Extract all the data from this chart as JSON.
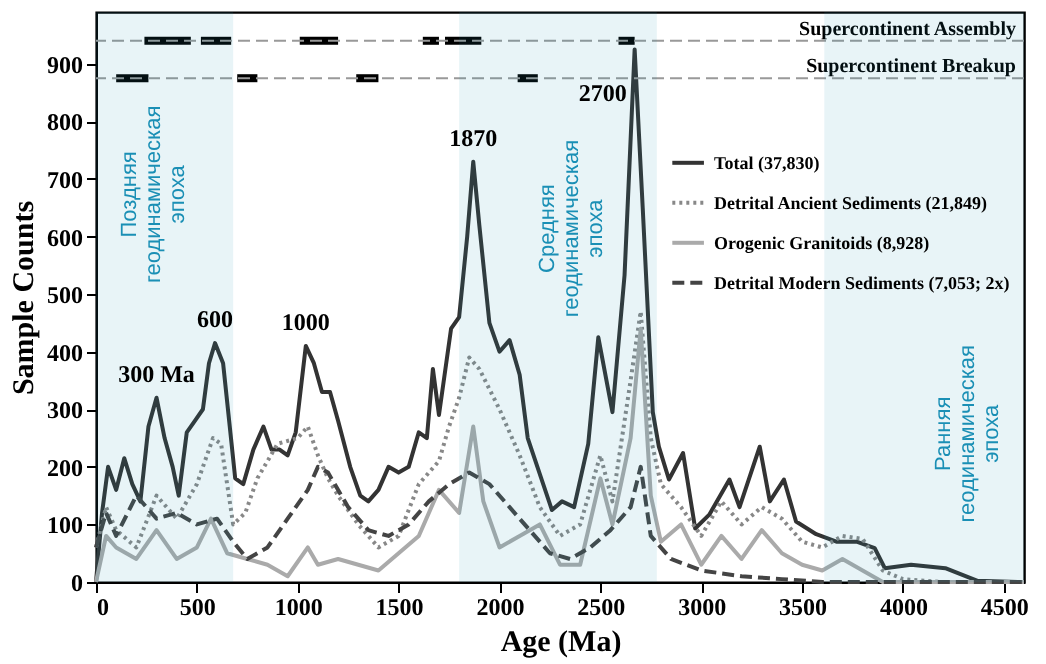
{
  "chart_data": {
    "type": "line",
    "xlabel": "Age (Ma)",
    "ylabel": "Sample Counts",
    "xlim": [
      0,
      4600
    ],
    "ylim": [
      0,
      990
    ],
    "xticks": [
      0,
      500,
      1000,
      1500,
      2000,
      2500,
      3000,
      3500,
      4000,
      4500
    ],
    "yticks": [
      0,
      100,
      200,
      300,
      400,
      500,
      600,
      700,
      800,
      900
    ],
    "grid": false,
    "legend": "right",
    "series": [
      {
        "name": "Total (37,830)",
        "color": "#333333",
        "line_style": "solid",
        "x": [
          0,
          30,
          60,
          100,
          140,
          180,
          220,
          260,
          300,
          340,
          380,
          410,
          450,
          490,
          530,
          560,
          590,
          630,
          660,
          690,
          730,
          780,
          830,
          870,
          910,
          950,
          990,
          1040,
          1080,
          1120,
          1160,
          1200,
          1260,
          1310,
          1350,
          1400,
          1450,
          1500,
          1550,
          1600,
          1640,
          1670,
          1700,
          1760,
          1800,
          1840,
          1870,
          1900,
          1950,
          2000,
          2050,
          2100,
          2140,
          2260,
          2310,
          2370,
          2440,
          2490,
          2560,
          2620,
          2670,
          2710,
          2760,
          2790,
          2840,
          2910,
          2970,
          3040,
          3140,
          3190,
          3290,
          3340,
          3410,
          3470,
          3570,
          3670,
          3770,
          3860,
          3910,
          4040,
          4210,
          4370,
          4570
        ],
        "values": [
          0,
          120,
          200,
          160,
          215,
          170,
          140,
          270,
          320,
          250,
          200,
          150,
          260,
          280,
          300,
          380,
          415,
          380,
          280,
          180,
          170,
          230,
          270,
          230,
          230,
          220,
          260,
          410,
          380,
          330,
          330,
          280,
          200,
          150,
          140,
          160,
          200,
          190,
          200,
          260,
          250,
          370,
          290,
          440,
          460,
          600,
          730,
          620,
          450,
          400,
          420,
          360,
          250,
          125,
          140,
          130,
          240,
          425,
          295,
          533,
          925,
          650,
          295,
          235,
          178,
          224,
          93,
          117,
          178,
          130,
          235,
          140,
          178,
          105,
          83,
          70,
          70,
          59,
          24,
          30,
          24,
          2,
          0
        ]
      },
      {
        "name": "Detrital Ancient Sediments (21,849)",
        "color": "#888888",
        "line_style": "dotted",
        "x": [
          0,
          50,
          100,
          200,
          300,
          400,
          500,
          580,
          620,
          680,
          740,
          800,
          900,
          1000,
          1050,
          1100,
          1150,
          1200,
          1300,
          1400,
          1500,
          1600,
          1700,
          1750,
          1800,
          1850,
          1900,
          2000,
          2100,
          2200,
          2300,
          2400,
          2500,
          2560,
          2650,
          2700,
          2750,
          2800,
          2900,
          3000,
          3100,
          3200,
          3300,
          3400,
          3500,
          3600,
          3700,
          3800,
          3900,
          4000,
          4200,
          4600
        ],
        "values": [
          60,
          130,
          90,
          60,
          150,
          110,
          170,
          250,
          240,
          100,
          120,
          180,
          240,
          250,
          270,
          220,
          180,
          150,
          100,
          60,
          80,
          170,
          210,
          270,
          320,
          390,
          370,
          300,
          220,
          130,
          80,
          100,
          220,
          140,
          350,
          470,
          250,
          170,
          130,
          80,
          140,
          100,
          130,
          110,
          70,
          60,
          80,
          75,
          20,
          5,
          0,
          0
        ]
      },
      {
        "name": "Orogenic Granitoids (8,928)",
        "color": "#aaaaaa",
        "line_style": "solid",
        "x": [
          0,
          50,
          100,
          200,
          300,
          400,
          500,
          570,
          650,
          750,
          850,
          950,
          1050,
          1100,
          1200,
          1300,
          1400,
          1500,
          1600,
          1700,
          1800,
          1870,
          1920,
          2000,
          2100,
          2200,
          2300,
          2400,
          2500,
          2560,
          2650,
          2700,
          2750,
          2800,
          2900,
          3000,
          3100,
          3200,
          3300,
          3400,
          3500,
          3600,
          3700,
          3800,
          3900,
          4600
        ],
        "values": [
          0,
          80,
          60,
          40,
          90,
          40,
          60,
          110,
          50,
          40,
          30,
          10,
          60,
          30,
          40,
          30,
          20,
          50,
          80,
          160,
          120,
          270,
          140,
          60,
          80,
          100,
          30,
          30,
          180,
          100,
          250,
          440,
          150,
          70,
          100,
          30,
          80,
          40,
          90,
          50,
          30,
          20,
          40,
          20,
          0,
          0
        ]
      },
      {
        "name": "Detrital Modern Sediments (7,053; 2x)",
        "color": "#444444",
        "line_style": "dashed",
        "x": [
          0,
          50,
          100,
          200,
          300,
          400,
          500,
          600,
          680,
          750,
          850,
          950,
          1050,
          1100,
          1150,
          1250,
          1350,
          1450,
          1550,
          1650,
          1750,
          1850,
          1950,
          2050,
          2150,
          2250,
          2350,
          2450,
          2550,
          2650,
          2700,
          2750,
          2850,
          3000,
          3200,
          3400,
          3600,
          4600
        ],
        "values": [
          60,
          120,
          80,
          150,
          110,
          120,
          100,
          110,
          70,
          40,
          60,
          110,
          160,
          200,
          190,
          130,
          90,
          80,
          100,
          140,
          170,
          190,
          170,
          130,
          90,
          50,
          40,
          60,
          90,
          130,
          200,
          80,
          40,
          20,
          10,
          5,
          0,
          0
        ]
      },
      {
        "color": "#000000",
        "line_style": "solid",
        "x": [
          240,
          470,
          495,
          520,
          670,
          840,
          1010,
          1200,
          1410,
          1620,
          1700,
          1715,
          1730,
          1910,
          2250,
          2590,
          2670
        ],
        "values": [
          940,
          940,
          null,
          940,
          940,
          null,
          940,
          940,
          null,
          940,
          940,
          null,
          940,
          940,
          null,
          940,
          940
        ]
      },
      {
        "color": "#000000",
        "line_style": "solid",
        "x": [
          100,
          260,
          480,
          700,
          800,
          1045,
          1290,
          1400,
          1745,
          2090,
          2190
        ],
        "values": [
          875,
          875,
          null,
          875,
          875,
          null,
          875,
          875,
          null,
          875,
          875
        ]
      }
    ],
    "ref_lines": [
      {
        "axis": "y",
        "value": 940,
        "label": "Supercontinent Assembly",
        "color": "#999999",
        "line_style": "dashed"
      },
      {
        "axis": "y",
        "value": 875,
        "label": "Supercontinent Breakup",
        "color": "#999999",
        "line_style": "dashed"
      }
    ],
    "bands": [
      {
        "axis": "x",
        "from": 0,
        "to": 680,
        "label": "Поздняя геодинамическая эпоха",
        "color": "#1a8fb5"
      },
      {
        "axis": "x",
        "from": 1800,
        "to": 2780,
        "label": "Средняя геодинамическая эпоха",
        "color": "#1a8fb5"
      },
      {
        "axis": "x",
        "from": 3610,
        "to": 4600,
        "label": "Ранняя геодинамическая эпоха",
        "color": "#1a8fb5"
      }
    ],
    "annotations": [
      {
        "text": "300 Ma",
        "x": 300,
        "y": 320
      },
      {
        "text": "600",
        "x": 590,
        "y": 415
      },
      {
        "text": "1000",
        "x": 1040,
        "y": 410
      },
      {
        "text": "1870",
        "x": 1870,
        "y": 730
      },
      {
        "text": "2700",
        "x": 2670,
        "y": 925
      }
    ]
  }
}
